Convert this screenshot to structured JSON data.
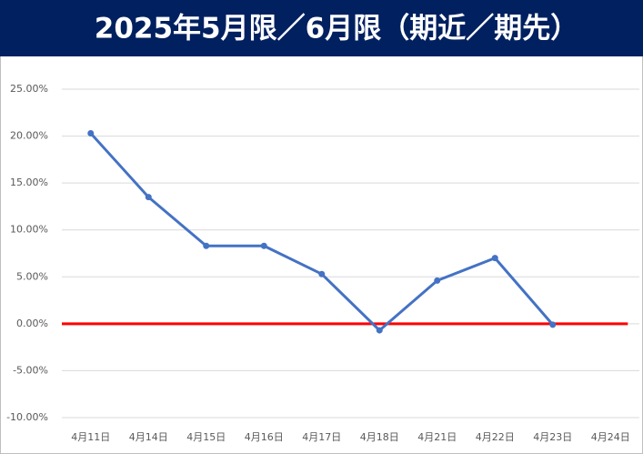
{
  "chart_data": {
    "type": "line",
    "title": "2025年5月限／6月限（期近／期先）",
    "title_background": "#002060",
    "categories": [
      "4月11日",
      "4月14日",
      "4月15日",
      "4月16日",
      "4月17日",
      "4月18日",
      "4月21日",
      "4月22日",
      "4月23日",
      "4月24日"
    ],
    "series": [
      {
        "color": "#4472c4",
        "values": [
          20.3,
          13.5,
          8.3,
          8.3,
          5.3,
          -0.7,
          4.6,
          7.0,
          -0.1,
          null
        ]
      }
    ],
    "reference_line": {
      "value": 0,
      "color": "#ff0000"
    },
    "ylim": [
      -10,
      25
    ],
    "yticks": [
      {
        "value": -10,
        "label": "-10.00%"
      },
      {
        "value": -5,
        "label": "-5.00%"
      },
      {
        "value": 0,
        "label": "0.00%"
      },
      {
        "value": 5,
        "label": "5.00%"
      },
      {
        "value": 10,
        "label": "10.00%"
      },
      {
        "value": 15,
        "label": "15.00%"
      },
      {
        "value": 20,
        "label": "20.00%"
      },
      {
        "value": 25,
        "label": "25.00%"
      }
    ],
    "grid": true
  }
}
